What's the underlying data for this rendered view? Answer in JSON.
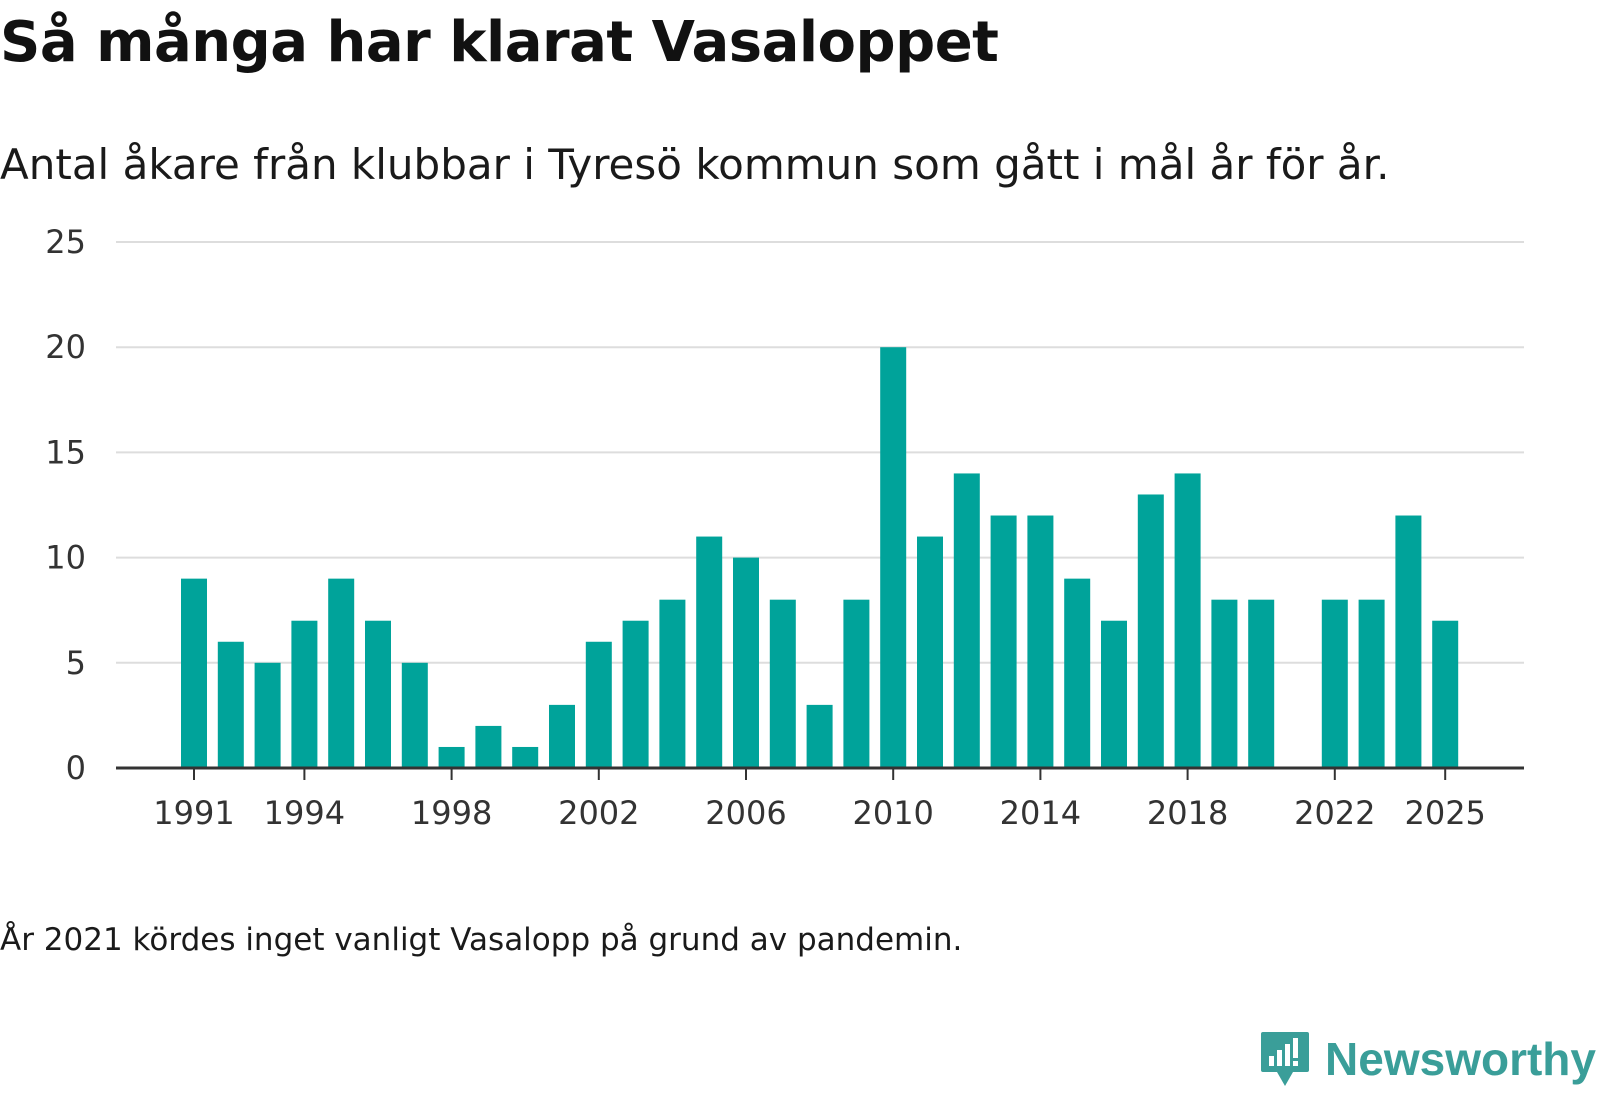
{
  "chart_data": {
    "type": "bar",
    "title": "Så många har klarat Vasaloppet",
    "subtitle": "Antal åkare från klubbar i Tyresö kommun som gått i mål år för år.",
    "note": "År 2021 kördes inget vanligt Vasalopp på grund av pandemin.",
    "xlabel": "",
    "ylabel": "",
    "ylim": [
      0,
      25
    ],
    "yticks": [
      0,
      5,
      10,
      15,
      20,
      25
    ],
    "xticks": [
      1991,
      1994,
      1998,
      2002,
      2006,
      2010,
      2014,
      2018,
      2022,
      2025
    ],
    "x": [
      1991,
      1992,
      1993,
      1994,
      1995,
      1996,
      1997,
      1998,
      1999,
      2000,
      2001,
      2002,
      2003,
      2004,
      2005,
      2006,
      2007,
      2008,
      2009,
      2010,
      2011,
      2012,
      2013,
      2014,
      2015,
      2016,
      2017,
      2018,
      2019,
      2020,
      2021,
      2022,
      2023,
      2024,
      2025
    ],
    "values": [
      9,
      6,
      5,
      7,
      9,
      7,
      5,
      1,
      2,
      1,
      3,
      6,
      7,
      8,
      11,
      10,
      8,
      3,
      8,
      20,
      11,
      14,
      12,
      12,
      9,
      7,
      13,
      14,
      8,
      8,
      null,
      8,
      8,
      12,
      7
    ],
    "grid": true,
    "bar_color": "#00a39a"
  },
  "brand": {
    "name": "Newsworthy",
    "color": "#3a9e99"
  }
}
